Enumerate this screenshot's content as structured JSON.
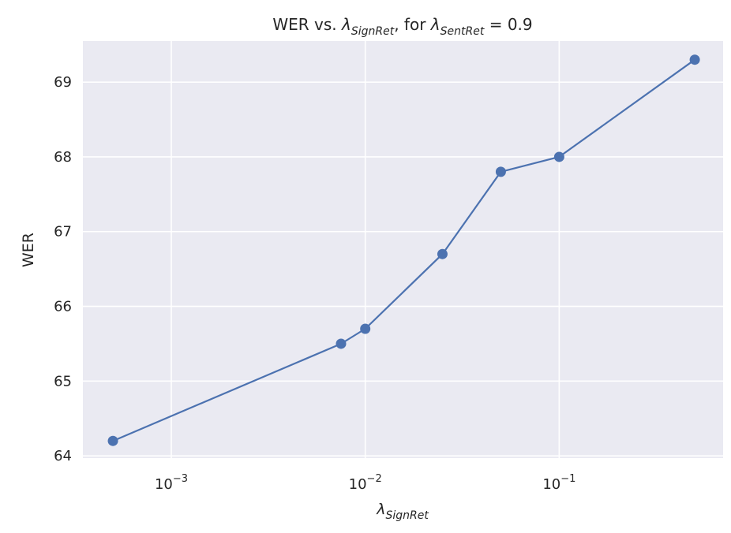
{
  "chart_data": {
    "type": "line",
    "title": {
      "prefix": "WER vs. ",
      "var1_symbol": "λ",
      "var1_sub": "SignRet",
      "middle": ", for ",
      "var2_symbol": "λ",
      "var2_sub": "SentRet",
      "suffix": " = 0.9"
    },
    "xlabel": {
      "symbol": "λ",
      "sub": "SignRet"
    },
    "ylabel": "WER",
    "xscale": "log",
    "xlim": [
      0.00035,
      0.7
    ],
    "ylim": [
      63.97,
      69.55
    ],
    "x_ticks": [
      {
        "value": 0.001,
        "base": "10",
        "exp": "−3"
      },
      {
        "value": 0.01,
        "base": "10",
        "exp": "−2"
      },
      {
        "value": 0.1,
        "base": "10",
        "exp": "−1"
      }
    ],
    "y_ticks": [
      64,
      65,
      66,
      67,
      68,
      69
    ],
    "grid": true,
    "colors": {
      "background": "#eaeaf2",
      "grid": "#ffffff",
      "series": "#4c72b0"
    },
    "series": [
      {
        "x": [
          0.0005,
          0.0075,
          0.01,
          0.025,
          0.05,
          0.1,
          0.5
        ],
        "y": [
          64.2,
          65.5,
          65.7,
          66.7,
          67.8,
          68.0,
          69.3
        ]
      }
    ]
  }
}
